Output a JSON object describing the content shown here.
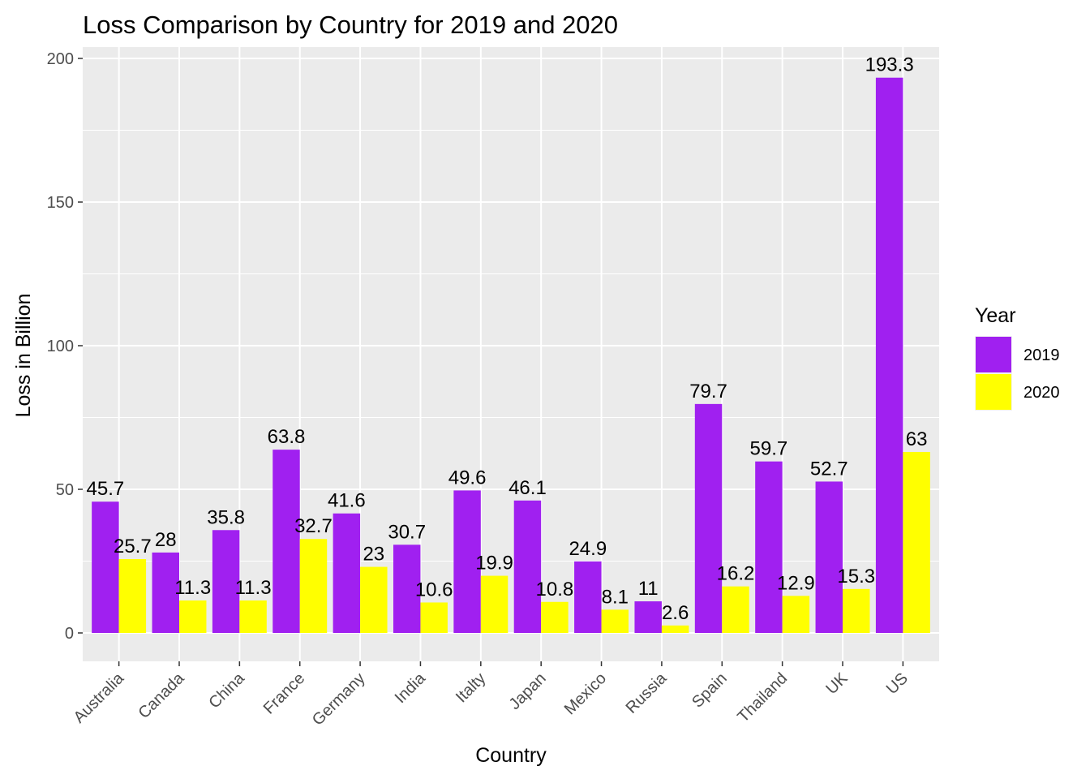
{
  "chart_data": {
    "type": "bar",
    "title": "Loss Comparison by Country for 2019 and 2020",
    "xlabel": "Country",
    "ylabel": "Loss in Billion",
    "ylim": [
      -10,
      203
    ],
    "yticks": [
      0,
      50,
      100,
      150,
      200
    ],
    "grid": true,
    "legend_position": "right",
    "legend_title": "Year",
    "categories": [
      "Australia",
      "Canada",
      "China",
      "France",
      "Germany",
      "India",
      "Italty",
      "Japan",
      "Mexico",
      "Russia",
      "Spain",
      "Thailand",
      "UK",
      "US"
    ],
    "series": [
      {
        "name": "2019",
        "color": "#a020f0",
        "values": [
          45.7,
          28,
          35.8,
          63.8,
          41.6,
          30.7,
          49.6,
          46.1,
          24.9,
          11,
          79.7,
          59.7,
          52.7,
          193.3
        ]
      },
      {
        "name": "2020",
        "color": "#ffff00",
        "values": [
          25.7,
          11.3,
          11.3,
          32.7,
          23,
          10.6,
          19.9,
          10.8,
          8.1,
          2.6,
          16.2,
          12.9,
          15.3,
          63
        ]
      }
    ]
  }
}
